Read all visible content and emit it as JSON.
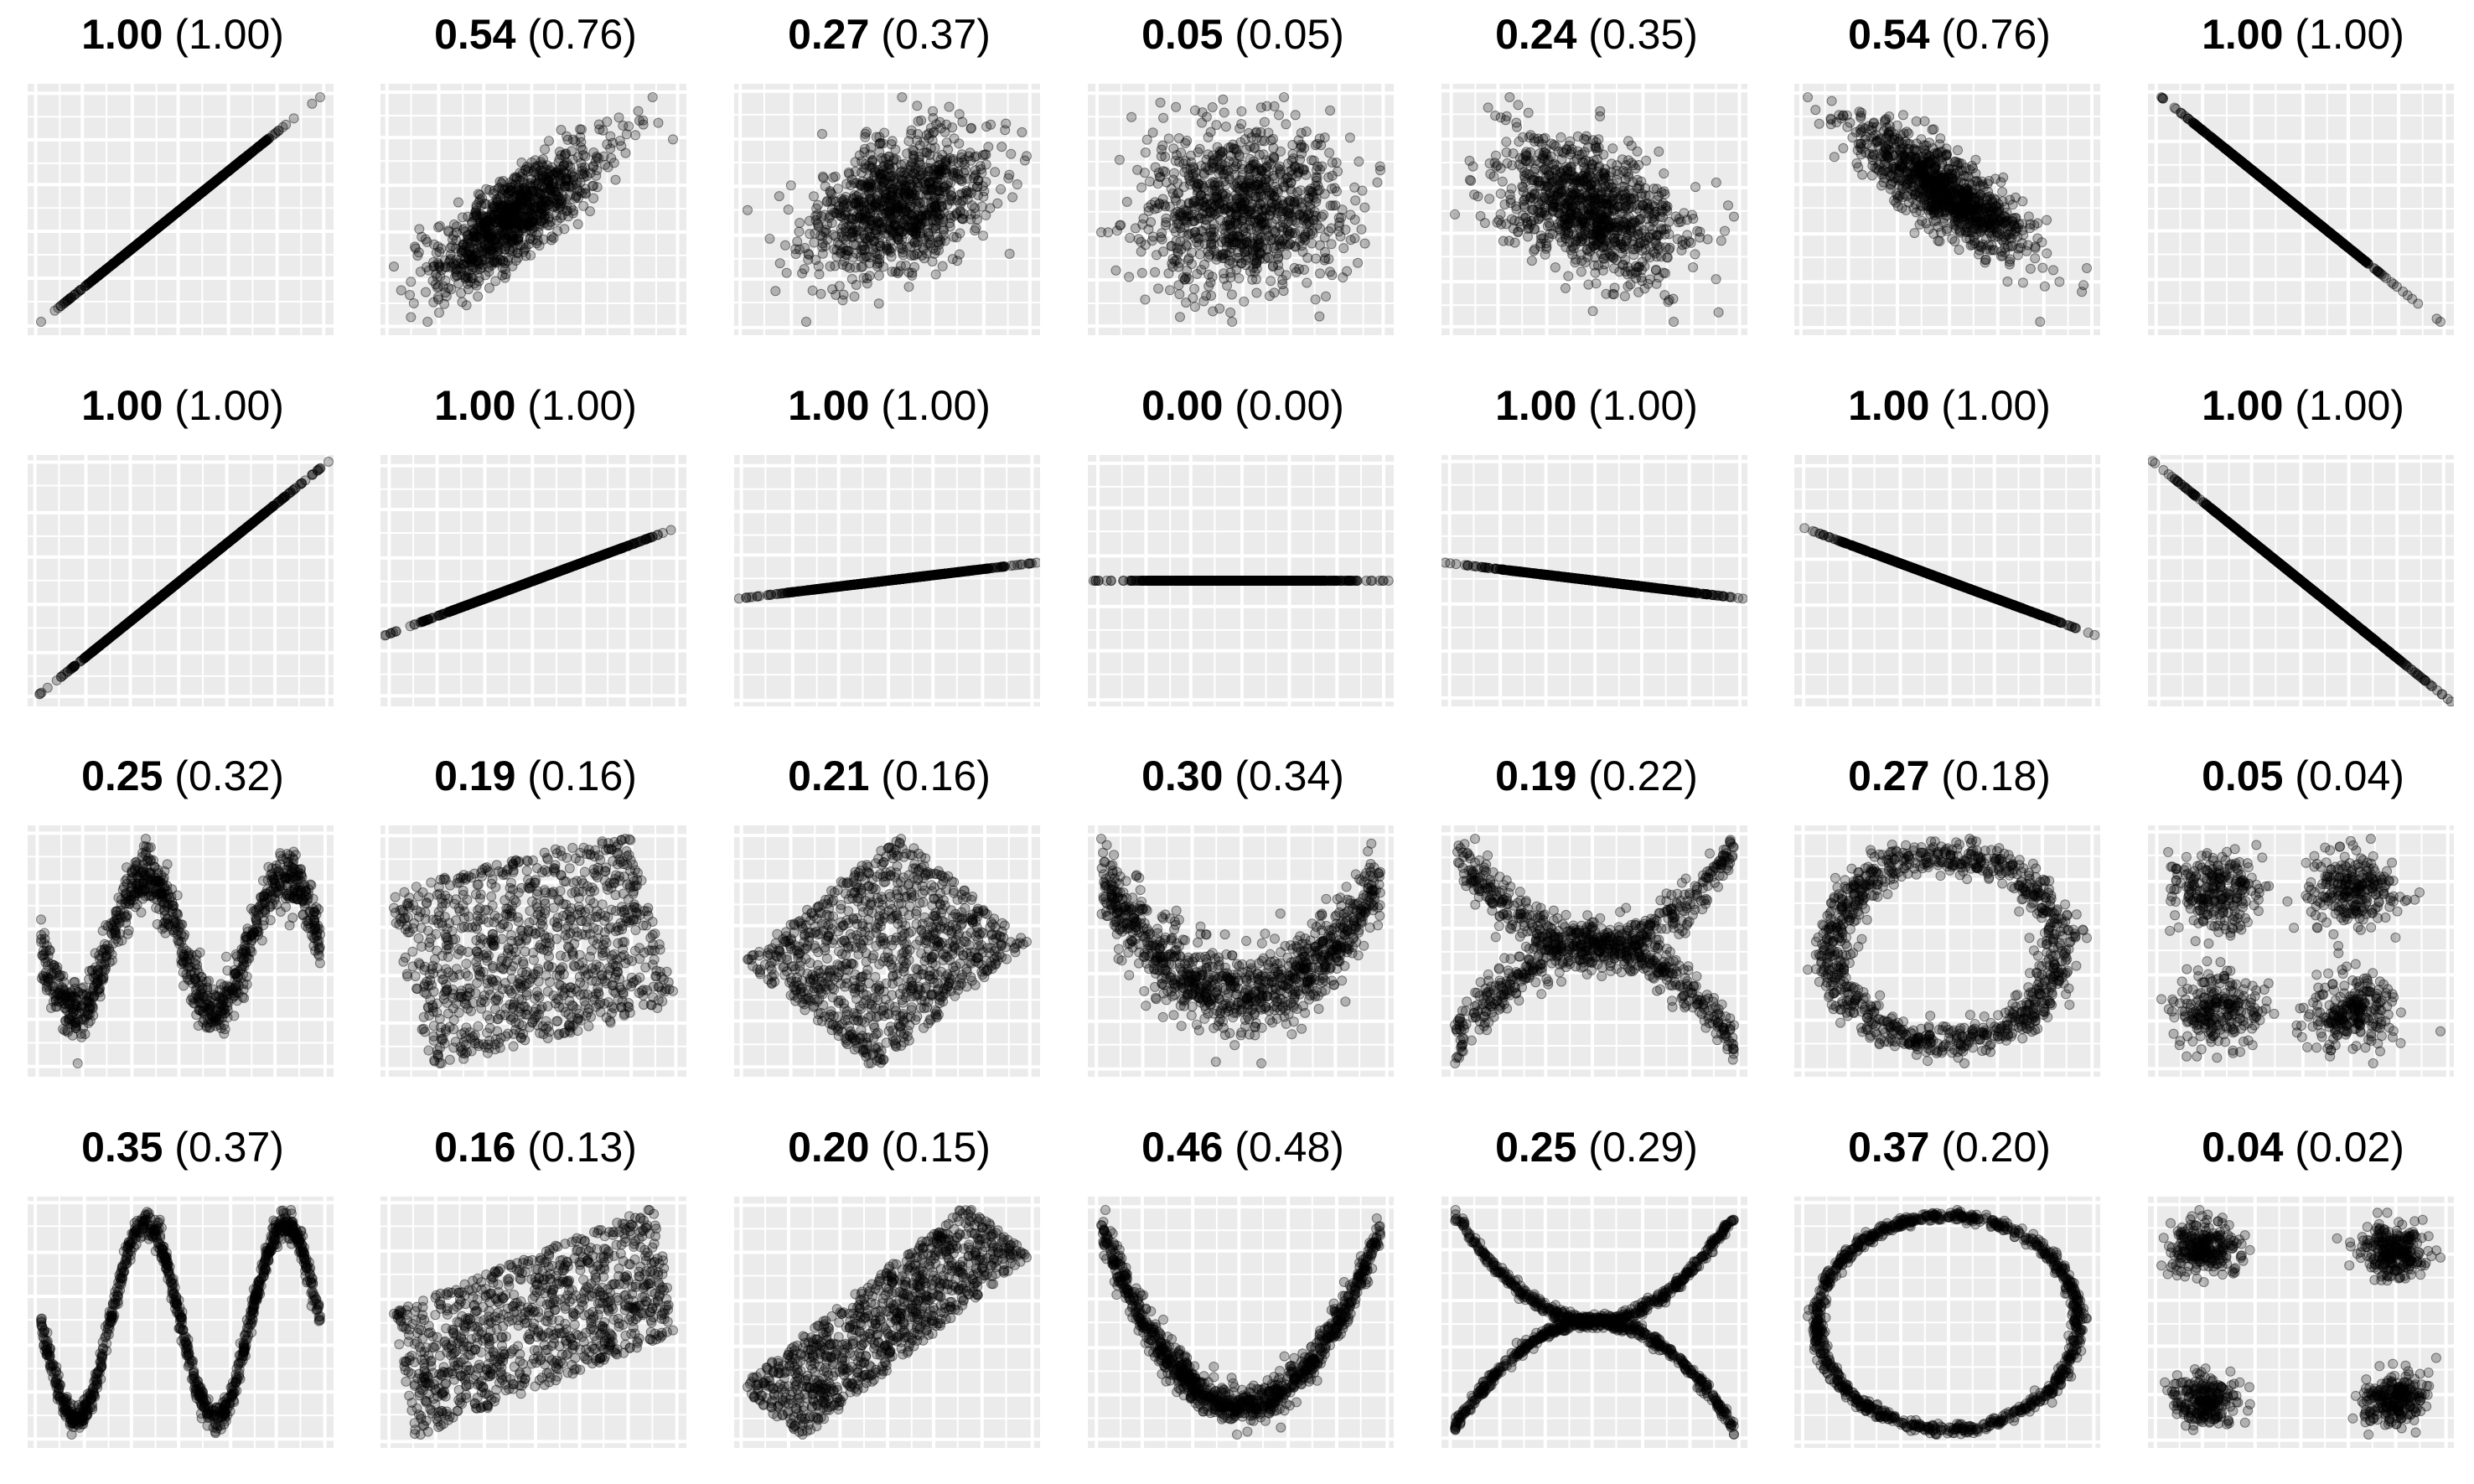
{
  "figure": {
    "background": "#ffffff",
    "panel_background": "#ebebeb",
    "grid_color": "#ffffff",
    "point_color": "#000000",
    "point_alpha": 0.25
  },
  "chart_data": [
    {
      "type": "scatter",
      "pattern": "linear",
      "title_value": "1.00",
      "title_alt": "(1.00)",
      "slope": 1,
      "noise": 0,
      "spread": 1
    },
    {
      "type": "scatter",
      "pattern": "correlated",
      "title_value": "0.54",
      "title_alt": "(0.76)",
      "r": 0.8
    },
    {
      "type": "scatter",
      "pattern": "correlated",
      "title_value": "0.27",
      "title_alt": "(0.37)",
      "r": 0.4
    },
    {
      "type": "scatter",
      "pattern": "correlated",
      "title_value": "0.05",
      "title_alt": "(0.05)",
      "r": 0.0
    },
    {
      "type": "scatter",
      "pattern": "correlated",
      "title_value": "0.24",
      "title_alt": "(0.35)",
      "r": -0.4
    },
    {
      "type": "scatter",
      "pattern": "correlated",
      "title_value": "0.54",
      "title_alt": "(0.76)",
      "r": -0.8
    },
    {
      "type": "scatter",
      "pattern": "linear",
      "title_value": "1.00",
      "title_alt": "(1.00)",
      "slope": -1,
      "noise": 0,
      "spread": 1
    },
    {
      "type": "scatter",
      "pattern": "line",
      "title_value": "1.00",
      "title_alt": "(1.00)",
      "slope": 1.2
    },
    {
      "type": "scatter",
      "pattern": "line",
      "title_value": "1.00",
      "title_alt": "(1.00)",
      "slope": 0.55
    },
    {
      "type": "scatter",
      "pattern": "line",
      "title_value": "1.00",
      "title_alt": "(1.00)",
      "slope": 0.18
    },
    {
      "type": "scatter",
      "pattern": "line",
      "title_value": "0.00",
      "title_alt": "(0.00)",
      "slope": 0
    },
    {
      "type": "scatter",
      "pattern": "line",
      "title_value": "1.00",
      "title_alt": "(1.00)",
      "slope": -0.18
    },
    {
      "type": "scatter",
      "pattern": "line",
      "title_value": "1.00",
      "title_alt": "(1.00)",
      "slope": -0.55
    },
    {
      "type": "scatter",
      "pattern": "line",
      "title_value": "1.00",
      "title_alt": "(1.00)",
      "slope": -1.2
    },
    {
      "type": "scatter",
      "pattern": "sine",
      "title_value": "0.25",
      "title_alt": "(0.32)",
      "noise": 0.22
    },
    {
      "type": "scatter",
      "pattern": "rotated-square",
      "title_value": "0.19",
      "title_alt": "(0.16)",
      "angle": 15,
      "flat": 0.75
    },
    {
      "type": "scatter",
      "pattern": "rotated-square",
      "title_value": "0.21",
      "title_alt": "(0.16)",
      "angle": 45,
      "flat": 0.85
    },
    {
      "type": "scatter",
      "pattern": "parabola",
      "title_value": "0.30",
      "title_alt": "(0.34)",
      "noise": 0.35
    },
    {
      "type": "scatter",
      "pattern": "cross",
      "title_value": "0.19",
      "title_alt": "(0.22)",
      "noise": 0.12
    },
    {
      "type": "scatter",
      "pattern": "ring",
      "title_value": "0.27",
      "title_alt": "(0.18)",
      "noise": 0.09
    },
    {
      "type": "scatter",
      "pattern": "clusters",
      "title_value": "0.05",
      "title_alt": "(0.04)",
      "noise": 0.2
    },
    {
      "type": "scatter",
      "pattern": "sine",
      "title_value": "0.35",
      "title_alt": "(0.37)",
      "noise": 0.07
    },
    {
      "type": "scatter",
      "pattern": "rotated-square",
      "title_value": "0.16",
      "title_alt": "(0.13)",
      "angle": 15,
      "flat": 0.32
    },
    {
      "type": "scatter",
      "pattern": "rotated-square",
      "title_value": "0.20",
      "title_alt": "(0.15)",
      "angle": 45,
      "flat": 0.28
    },
    {
      "type": "scatter",
      "pattern": "parabola",
      "title_value": "0.46",
      "title_alt": "(0.48)",
      "noise": 0.1
    },
    {
      "type": "scatter",
      "pattern": "cross",
      "title_value": "0.25",
      "title_alt": "(0.29)",
      "noise": 0.03
    },
    {
      "type": "scatter",
      "pattern": "ring",
      "title_value": "0.37",
      "title_alt": "(0.20)",
      "noise": 0.025
    },
    {
      "type": "scatter",
      "pattern": "clusters",
      "title_value": "0.04",
      "title_alt": "(0.02)",
      "noise": 0.11
    }
  ]
}
